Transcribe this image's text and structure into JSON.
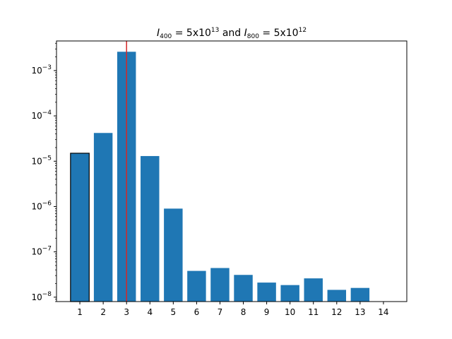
{
  "chart_data": {
    "type": "bar",
    "title": {
      "prefix": "I",
      "sub1": "400",
      "eq1": " = 5x10",
      "sup1": "13",
      "and": " and ",
      "prefix2": "I",
      "sub2": "800",
      "eq2": " = 5x10",
      "sup2": "12"
    },
    "xlabel": "",
    "ylabel": "",
    "yscale": "log",
    "ylim": [
      8e-09,
      0.0045
    ],
    "xlim": [
      0,
      15
    ],
    "categories": [
      "1",
      "2",
      "3",
      "4",
      "5",
      "6",
      "7",
      "8",
      "9",
      "10",
      "11",
      "12",
      "13",
      "14"
    ],
    "values": [
      1.5e-05,
      4.2e-05,
      0.0026,
      1.3e-05,
      9e-07,
      3.8e-08,
      4.4e-08,
      3.1e-08,
      2.1e-08,
      1.85e-08,
      2.6e-08,
      1.45e-08,
      1.6e-08,
      null
    ],
    "highlighted_bar": "1",
    "vertical_line_x": 3,
    "yticks": [
      {
        "value": 1e-08,
        "base": "10",
        "exp": "−8"
      },
      {
        "value": 1e-07,
        "base": "10",
        "exp": "−7"
      },
      {
        "value": 1e-06,
        "base": "10",
        "exp": "−6"
      },
      {
        "value": 1e-05,
        "base": "10",
        "exp": "−5"
      },
      {
        "value": 0.0001,
        "base": "10",
        "exp": "−4"
      },
      {
        "value": 0.001,
        "base": "10",
        "exp": "−3"
      }
    ],
    "colors": {
      "bar": "#1f77b4",
      "highlight_edge": "#000000",
      "vline": "#d62728"
    },
    "grid": false,
    "legend": "none"
  }
}
